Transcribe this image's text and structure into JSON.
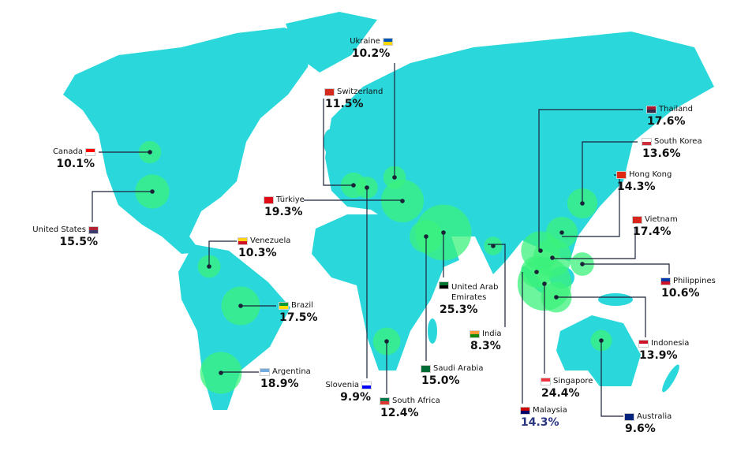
{
  "countries": [
    {
      "name": "Ukraine",
      "value": 10.2,
      "label": "10.2%"
    },
    {
      "name": "Switzerland",
      "value": 11.5,
      "label": "11.5%"
    },
    {
      "name": "Thailand",
      "value": 17.6,
      "label": "17.6%"
    },
    {
      "name": "South Korea",
      "value": 13.6,
      "label": "13.6%"
    },
    {
      "name": "Hong Kong",
      "value": 14.3,
      "label": "14.3%"
    },
    {
      "name": "Vietnam",
      "value": 17.4,
      "label": "17.4%"
    },
    {
      "name": "Philippines",
      "value": 10.6,
      "label": "10.6%"
    },
    {
      "name": "Indonesia",
      "value": 13.9,
      "label": "13.9%"
    },
    {
      "name": "Australia",
      "value": 9.6,
      "label": "9.6%"
    },
    {
      "name": "Malaysia",
      "value": 14.3,
      "label": "14.3%"
    },
    {
      "name": "Singapore",
      "value": 24.4,
      "label": "24.4%"
    },
    {
      "name": "India",
      "value": 8.3,
      "label": "8.3%"
    },
    {
      "name": "United Arab Emirates",
      "value": 25.3,
      "label": "25.3%"
    },
    {
      "name": "Saudi Arabia",
      "value": 15.0,
      "label": "15.0%"
    },
    {
      "name": "South Africa",
      "value": 12.4,
      "label": "12.4%"
    },
    {
      "name": "Slovenia",
      "value": 9.9,
      "label": "9.9%"
    },
    {
      "name": "Türkiye",
      "value": 19.3,
      "label": "19.3%"
    },
    {
      "name": "Canada",
      "value": 10.1,
      "label": "10.1%"
    },
    {
      "name": "United States",
      "value": 15.5,
      "label": "15.5%"
    },
    {
      "name": "Venezuela",
      "value": 10.3,
      "label": "10.3%"
    },
    {
      "name": "Brazil",
      "value": 17.5,
      "label": "17.5%"
    },
    {
      "name": "Argentina",
      "value": 18.9,
      "label": "18.9%"
    }
  ]
}
